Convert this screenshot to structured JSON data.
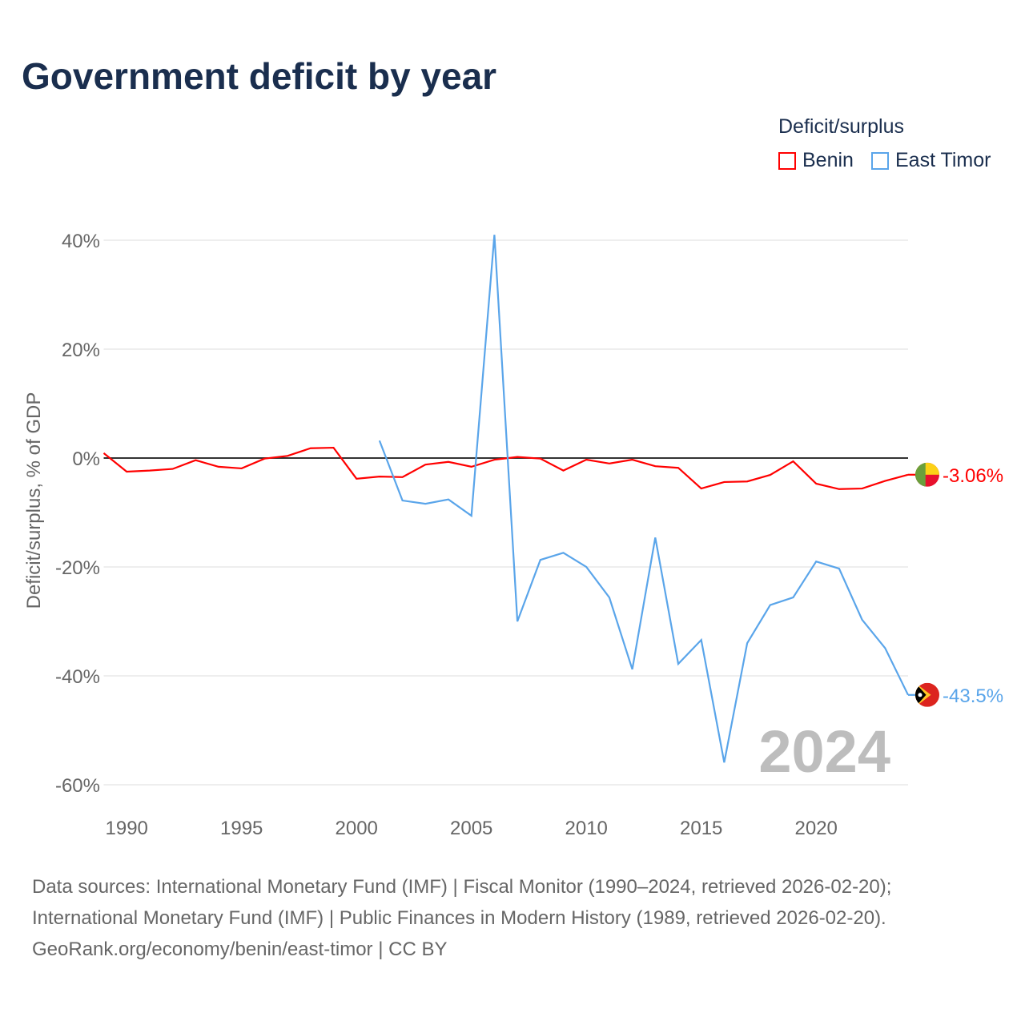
{
  "title": "Government deficit by year",
  "legend": {
    "title": "Deficit/surplus",
    "items": [
      {
        "name": "Benin",
        "color": "#ff0000"
      },
      {
        "name": "East Timor",
        "color": "#5aa5ea"
      }
    ]
  },
  "footer": [
    "Data sources: International Monetary Fund (IMF) | Fiscal Monitor (1990–2024, retrieved 2026-02-20);",
    "International Monetary Fund (IMF) | Public Finances in Modern History (1989, retrieved 2026-02-20).",
    "GeoRank.org/economy/benin/east-timor | CC BY"
  ],
  "chart_data": {
    "type": "line",
    "title": "Government deficit by year",
    "ylabel": "Deficit/surplus, % of GDP",
    "xlim": [
      1989,
      2024
    ],
    "ylim": [
      -60,
      40
    ],
    "xticks": [
      1990,
      1995,
      2000,
      2005,
      2010,
      2015,
      2020
    ],
    "yticks": [
      {
        "v": 40,
        "label": "40%"
      },
      {
        "v": 20,
        "label": "20%"
      },
      {
        "v": 0,
        "label": "0%"
      },
      {
        "v": -20,
        "label": "-20%"
      },
      {
        "v": -40,
        "label": "-40%"
      },
      {
        "v": -60,
        "label": "-60%"
      }
    ],
    "year_watermark": "2024",
    "series": [
      {
        "name": "Benin",
        "color": "#ff0000",
        "end_label": "-3.06%",
        "x": [
          1989,
          1990,
          1991,
          1992,
          1993,
          1994,
          1995,
          1996,
          1997,
          1998,
          1999,
          2000,
          2001,
          2002,
          2003,
          2004,
          2005,
          2006,
          2007,
          2008,
          2009,
          2010,
          2011,
          2012,
          2013,
          2014,
          2015,
          2016,
          2017,
          2018,
          2019,
          2020,
          2021,
          2022,
          2023,
          2024
        ],
        "values": [
          0.9,
          -2.5,
          -2.3,
          -2.0,
          -0.4,
          -1.6,
          -1.9,
          -0.1,
          0.4,
          1.8,
          1.9,
          -3.8,
          -3.4,
          -3.5,
          -1.2,
          -0.7,
          -1.6,
          -0.3,
          0.2,
          -0.1,
          -2.3,
          -0.3,
          -1.0,
          -0.3,
          -1.5,
          -1.8,
          -5.6,
          -4.4,
          -4.3,
          -3.1,
          -0.6,
          -4.7,
          -5.7,
          -5.6,
          -4.2,
          -3.06
        ]
      },
      {
        "name": "East Timor",
        "color": "#5aa5ea",
        "end_label": "-43.5%",
        "x": [
          2001,
          2002,
          2003,
          2004,
          2005,
          2006,
          2007,
          2008,
          2009,
          2010,
          2011,
          2012,
          2013,
          2014,
          2015,
          2016,
          2017,
          2018,
          2019,
          2020,
          2021,
          2022,
          2023,
          2024
        ],
        "values": [
          3.2,
          -7.8,
          -8.4,
          -7.6,
          -10.6,
          41,
          -30,
          -18.7,
          -17.4,
          -20,
          -25.6,
          -38.8,
          -14.6,
          -37.8,
          -33.4,
          -55.9,
          -34,
          -27,
          -25.6,
          -19,
          -20.3,
          -29.7,
          -34.9,
          -43.5
        ]
      }
    ]
  }
}
